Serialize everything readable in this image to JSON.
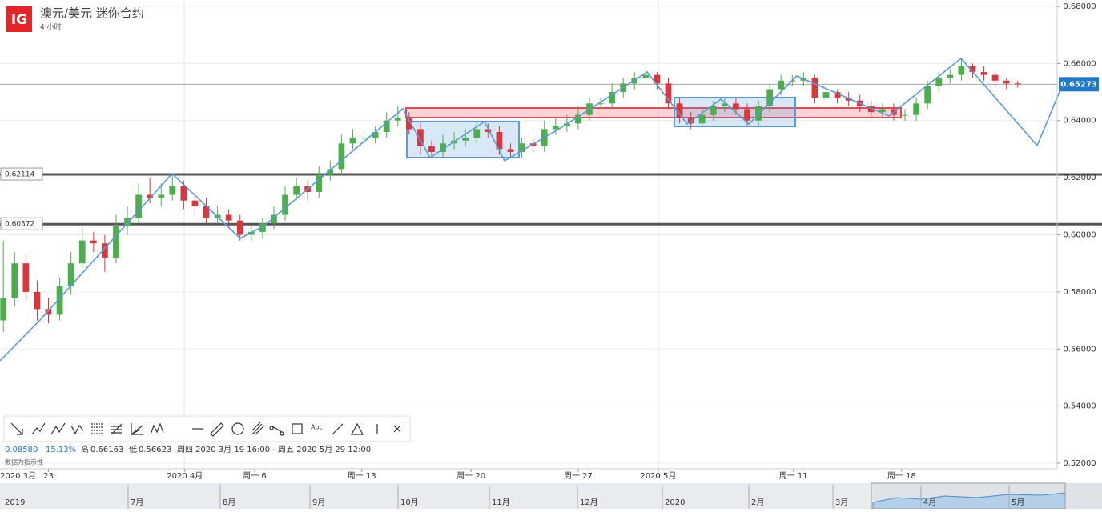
{
  "header": {
    "logo": "IG",
    "title": "澳元/美元 迷你合约",
    "interval": "4 小时"
  },
  "chart_data": {
    "type": "candlestick",
    "x": [
      0,
      1,
      2,
      3,
      4,
      5,
      6,
      7,
      8,
      9,
      10,
      11,
      12,
      13,
      14,
      15,
      16,
      17,
      18,
      19,
      20,
      21,
      22,
      23,
      24,
      25,
      26,
      27,
      28,
      29,
      30,
      31,
      32,
      33,
      34,
      35,
      36,
      37,
      38,
      39,
      40,
      41,
      42,
      43,
      44,
      45,
      46,
      47,
      48,
      49,
      50,
      51,
      52,
      53,
      54,
      55,
      56,
      57,
      58,
      59,
      60,
      61,
      62,
      63,
      64,
      65,
      66,
      67,
      68,
      69,
      70,
      71,
      72,
      73,
      74,
      75,
      76,
      77,
      78,
      79,
      80,
      81,
      82,
      83,
      84,
      85,
      86,
      87,
      88,
      89,
      90
    ],
    "opens": [
      0.57,
      0.578,
      0.59,
      0.58,
      0.574,
      0.572,
      0.582,
      0.59,
      0.598,
      0.597,
      0.592,
      0.603,
      0.606,
      0.614,
      0.613,
      0.614,
      0.617,
      0.612,
      0.61,
      0.606,
      0.607,
      0.605,
      0.6,
      0.601,
      0.604,
      0.607,
      0.614,
      0.617,
      0.615,
      0.621,
      0.623,
      0.632,
      0.634,
      0.634,
      0.636,
      0.64,
      0.641,
      0.637,
      0.631,
      0.629,
      0.632,
      0.633,
      0.634,
      0.637,
      0.636,
      0.63,
      0.629,
      0.632,
      0.631,
      0.637,
      0.638,
      0.639,
      0.642,
      0.646,
      0.646,
      0.65,
      0.653,
      0.655,
      0.656,
      0.653,
      0.646,
      0.641,
      0.639,
      0.642,
      0.645,
      0.646,
      0.644,
      0.64,
      0.645,
      0.651,
      0.654,
      0.654,
      0.655,
      0.648,
      0.65,
      0.648,
      0.647,
      0.645,
      0.643,
      0.644,
      0.642,
      0.642,
      0.646,
      0.652,
      0.655,
      0.656,
      0.659,
      0.657,
      0.656,
      0.654,
      0.653
    ],
    "highs": [
      0.598,
      0.594,
      0.593,
      0.584,
      0.578,
      0.585,
      0.594,
      0.603,
      0.601,
      0.6,
      0.607,
      0.61,
      0.618,
      0.62,
      0.618,
      0.621,
      0.619,
      0.615,
      0.613,
      0.61,
      0.609,
      0.607,
      0.603,
      0.606,
      0.61,
      0.617,
      0.62,
      0.619,
      0.624,
      0.626,
      0.635,
      0.637,
      0.636,
      0.638,
      0.643,
      0.645,
      0.643,
      0.639,
      0.633,
      0.635,
      0.636,
      0.637,
      0.64,
      0.639,
      0.638,
      0.632,
      0.634,
      0.634,
      0.64,
      0.641,
      0.642,
      0.645,
      0.648,
      0.648,
      0.653,
      0.655,
      0.657,
      0.658,
      0.657,
      0.655,
      0.648,
      0.643,
      0.644,
      0.647,
      0.648,
      0.648,
      0.646,
      0.647,
      0.653,
      0.656,
      0.656,
      0.657,
      0.656,
      0.652,
      0.651,
      0.65,
      0.649,
      0.647,
      0.646,
      0.646,
      0.644,
      0.648,
      0.654,
      0.657,
      0.658,
      0.6616,
      0.66,
      0.659,
      0.657,
      0.655,
      0.654
    ],
    "lows": [
      0.566,
      0.575,
      0.577,
      0.57,
      0.569,
      0.57,
      0.579,
      0.588,
      0.594,
      0.587,
      0.59,
      0.6,
      0.604,
      0.611,
      0.61,
      0.612,
      0.609,
      0.606,
      0.604,
      0.604,
      0.603,
      0.598,
      0.598,
      0.599,
      0.602,
      0.605,
      0.612,
      0.612,
      0.613,
      0.619,
      0.621,
      0.63,
      0.632,
      0.632,
      0.634,
      0.638,
      0.635,
      0.628,
      0.627,
      0.627,
      0.63,
      0.631,
      0.632,
      0.634,
      0.628,
      0.627,
      0.627,
      0.629,
      0.629,
      0.635,
      0.636,
      0.637,
      0.64,
      0.644,
      0.644,
      0.648,
      0.651,
      0.653,
      0.651,
      0.644,
      0.639,
      0.637,
      0.638,
      0.64,
      0.643,
      0.642,
      0.638,
      0.638,
      0.643,
      0.649,
      0.652,
      0.652,
      0.646,
      0.646,
      0.646,
      0.645,
      0.643,
      0.641,
      0.641,
      0.64,
      0.64,
      0.64,
      0.644,
      0.65,
      0.653,
      0.654,
      0.655,
      0.654,
      0.652,
      0.651,
      0.6515
    ],
    "closes": [
      0.578,
      0.59,
      0.58,
      0.574,
      0.572,
      0.582,
      0.59,
      0.598,
      0.597,
      0.592,
      0.603,
      0.606,
      0.614,
      0.613,
      0.614,
      0.617,
      0.612,
      0.61,
      0.606,
      0.607,
      0.605,
      0.6,
      0.601,
      0.604,
      0.607,
      0.614,
      0.617,
      0.615,
      0.621,
      0.623,
      0.632,
      0.634,
      0.634,
      0.636,
      0.64,
      0.641,
      0.637,
      0.631,
      0.629,
      0.632,
      0.633,
      0.634,
      0.637,
      0.636,
      0.63,
      0.629,
      0.632,
      0.631,
      0.637,
      0.638,
      0.639,
      0.642,
      0.646,
      0.646,
      0.65,
      0.653,
      0.655,
      0.656,
      0.653,
      0.646,
      0.641,
      0.639,
      0.642,
      0.645,
      0.646,
      0.644,
      0.64,
      0.645,
      0.651,
      0.654,
      0.654,
      0.655,
      0.648,
      0.65,
      0.648,
      0.647,
      0.645,
      0.643,
      0.644,
      0.642,
      0.642,
      0.646,
      0.652,
      0.655,
      0.656,
      0.659,
      0.657,
      0.656,
      0.654,
      0.653,
      0.6527
    ],
    "up_color": "#4cae4c",
    "down_color": "#d9363e",
    "xlim": [
      -0.3,
      93.5
    ],
    "xticks": [
      {
        "value": 1.3,
        "label": "2020 3月"
      },
      {
        "value": 4.0,
        "label": "23"
      },
      {
        "value": 16.1,
        "label": "2020 4月"
      },
      {
        "value": 22.3,
        "label": "周一 6"
      },
      {
        "value": 31.8,
        "label": "周一 13"
      },
      {
        "value": 41.5,
        "label": "周一 20"
      },
      {
        "value": 51.0,
        "label": "周一 27"
      },
      {
        "value": 58.1,
        "label": "2020 5月"
      },
      {
        "value": 70.1,
        "label": "周一 11"
      },
      {
        "value": 79.7,
        "label": "周一 18"
      }
    ],
    "ylim": [
      0.51804,
      0.68224
    ],
    "yticks": [
      {
        "value": 0.52,
        "label": "0.52000"
      },
      {
        "value": 0.54,
        "label": "0.54000"
      },
      {
        "value": 0.56,
        "label": "0.56000"
      },
      {
        "value": 0.58,
        "label": "0.58000"
      },
      {
        "value": 0.6,
        "label": "0.60000"
      },
      {
        "value": 0.62,
        "label": "0.62000"
      },
      {
        "value": 0.64,
        "label": "0.64000"
      },
      {
        "value": 0.66,
        "label": "0.66000"
      },
      {
        "value": 0.68,
        "label": "0.68000"
      }
    ],
    "levels": [
      0.62114,
      0.60372
    ],
    "current_price": 0.65273,
    "grid": true
  },
  "stats": {
    "change": "0.08580",
    "change_pct": "15.13%",
    "high_label": "高",
    "high": "0.66163",
    "low_label": "低",
    "low": "0.56623",
    "range": "周四 2020 3月 19 16:00 - 周五 2020 5月 29 12:00",
    "note": "数据为指示性"
  },
  "toolbar": {
    "text_tool": "Abc"
  },
  "navigator": {
    "labels": [
      "2019",
      "7月",
      "8月",
      "9月",
      "10月",
      "11月",
      "12月",
      "2020",
      "2月",
      "3月",
      "4月",
      "5月"
    ]
  }
}
